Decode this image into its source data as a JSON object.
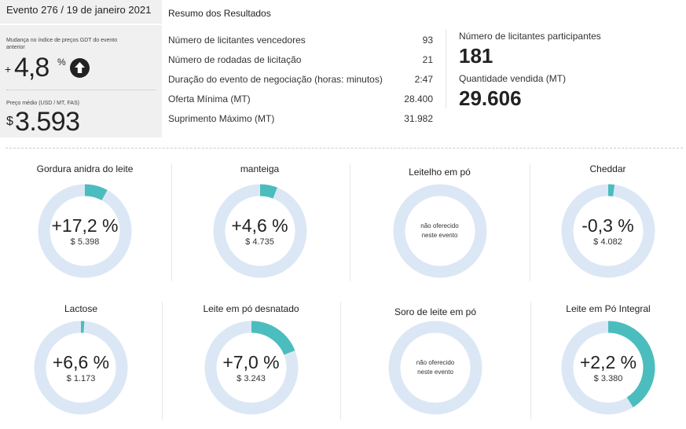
{
  "header": {
    "event_title": "Evento 276 / 19 de janeiro 2021",
    "change_label": "Mudança no índice de preços GDT do evento anterior",
    "change_sign": "+",
    "change_value": "4,8",
    "change_unit": "%",
    "change_icon": "arrow-up-icon",
    "price_label": "Preço médio (USD / MT, FAS)",
    "price_currency": "$",
    "price_value": "3.593"
  },
  "results": {
    "title": "Resumo dos Resultados",
    "rows": [
      {
        "label": "Número de licitantes vencedores",
        "value": "93"
      },
      {
        "label": "Número de rodadas de licitação",
        "value": "21"
      },
      {
        "label": "Duração do evento de negociação (horas: minutos)",
        "value": "2:47"
      },
      {
        "label": "Oferta Mínima (MT)",
        "value": "28.400"
      },
      {
        "label": "Suprimento Máximo (MT)",
        "value": "31.982"
      }
    ],
    "participants_label": "Número de licitantes participantes",
    "participants_value": "181",
    "quantity_label": "Quantidade vendida (MT)",
    "quantity_value": "29.606"
  },
  "colors": {
    "ring_fill": "#4bbdbe",
    "ring_track": "#dce7f5",
    "panel_bg": "#f0f0f0"
  },
  "products": [
    {
      "name": "Gordura anidra do leite",
      "change": "+17,2   %",
      "price": "$ 5.398",
      "fraction": 0.08,
      "offered": true
    },
    {
      "name": "manteiga",
      "change": "+4,6 %",
      "price": "$ 4.735",
      "fraction": 0.06,
      "offered": true
    },
    {
      "name": "Leitelho em pó",
      "na_line1": "não oferecido",
      "na_line2": "neste evento",
      "fraction": 0,
      "offered": false
    },
    {
      "name": "Cheddar",
      "change": "-0,3 %",
      "price": "$ 4.082",
      "fraction": 0.022,
      "offered": true
    },
    {
      "name": "Lactose",
      "change": "+6,6 %",
      "price": "$ 1.173",
      "fraction": 0.012,
      "offered": true
    },
    {
      "name": "Leite em pó desnatado",
      "change": "+7,0   %",
      "price": "$ 3.243",
      "fraction": 0.19,
      "offered": true
    },
    {
      "name": "Soro de leite em pó",
      "na_line1": "não oferecido",
      "na_line2": "neste evento",
      "fraction": 0,
      "offered": false
    },
    {
      "name": "Leite em Pó Integral",
      "change": "+2,2 %",
      "price": "$ 3.380",
      "fraction": 0.41,
      "offered": true
    }
  ]
}
